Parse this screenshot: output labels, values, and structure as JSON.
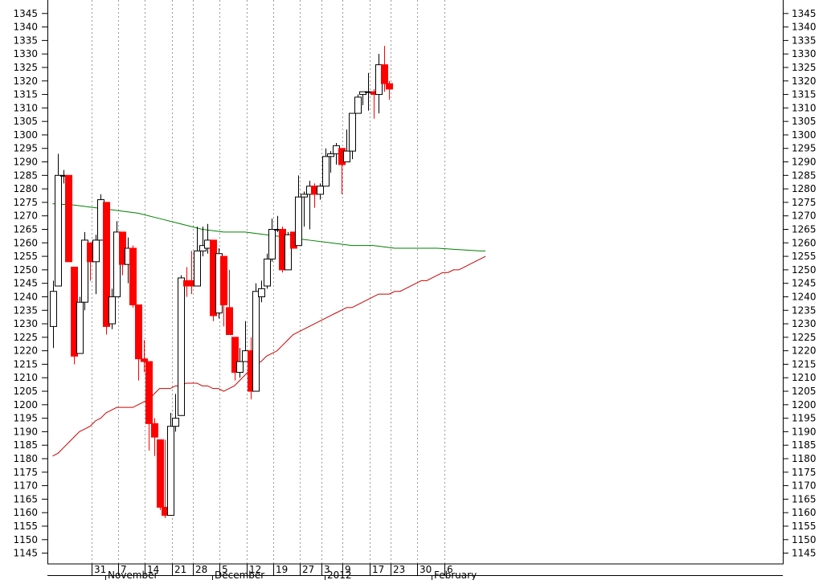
{
  "chart_data": {
    "type": "candlestick",
    "ylim": [
      1141,
      1350
    ],
    "yticks": [
      1145,
      1150,
      1155,
      1160,
      1165,
      1170,
      1175,
      1180,
      1185,
      1190,
      1195,
      1200,
      1205,
      1210,
      1215,
      1220,
      1225,
      1230,
      1235,
      1240,
      1245,
      1250,
      1255,
      1260,
      1265,
      1270,
      1275,
      1280,
      1285,
      1290,
      1295,
      1300,
      1305,
      1310,
      1315,
      1320,
      1325,
      1330,
      1335,
      1340,
      1345
    ],
    "grid": true,
    "colors": {
      "up": "#ffffff",
      "down": "#ff0000",
      "up_outline": "#000000",
      "down_outline": "#ff0000",
      "ma_short": "#cc0000",
      "ma_long": "#008000",
      "grid": "#999999"
    },
    "day_labels": [
      {
        "label": "31",
        "day_index": 2
      },
      {
        "label": "7",
        "day_index": 7
      },
      {
        "label": "14",
        "day_index": 12
      },
      {
        "label": "21",
        "day_index": 17
      },
      {
        "label": "28",
        "day_index": 21
      },
      {
        "label": "5",
        "day_index": 26
      },
      {
        "label": "12",
        "day_index": 31
      },
      {
        "label": "19",
        "day_index": 36
      },
      {
        "label": "27",
        "day_index": 41
      },
      {
        "label": "3",
        "day_index": 45
      },
      {
        "label": "9",
        "day_index": 49
      },
      {
        "label": "17",
        "day_index": 54
      },
      {
        "label": "23",
        "day_index": 58
      },
      {
        "label": "30",
        "day_index": 63
      },
      {
        "label": "6",
        "day_index": 68
      }
    ],
    "month_labels": [
      {
        "label": "November",
        "day_index": 3
      },
      {
        "label": "December",
        "day_index": 23
      },
      {
        "label": "2012",
        "day_index": 44
      },
      {
        "label": "February",
        "day_index": 64
      }
    ],
    "candles": [
      {
        "o": 1229,
        "h": 1246,
        "l": 1221,
        "c": 1242
      },
      {
        "o": 1244,
        "h": 1293,
        "l": 1244,
        "c": 1285
      },
      {
        "o": 1285,
        "h": 1287,
        "l": 1282,
        "c": 1285
      },
      {
        "o": 1285,
        "h": 1285,
        "l": 1253,
        "c": 1253
      },
      {
        "o": 1251,
        "h": 1251,
        "l": 1215,
        "c": 1218
      },
      {
        "o": 1219,
        "h": 1240,
        "l": 1219,
        "c": 1238
      },
      {
        "o": 1238,
        "h": 1264,
        "l": 1235,
        "c": 1261
      },
      {
        "o": 1260,
        "h": 1260,
        "l": 1246,
        "c": 1253
      },
      {
        "o": 1253,
        "h": 1263,
        "l": 1241,
        "c": 1261
      },
      {
        "o": 1261,
        "h": 1278,
        "l": 1261,
        "c": 1276
      },
      {
        "o": 1275,
        "h": 1275,
        "l": 1226,
        "c": 1229
      },
      {
        "o": 1230,
        "h": 1243,
        "l": 1228,
        "c": 1240
      },
      {
        "o": 1240,
        "h": 1268,
        "l": 1240,
        "c": 1264
      },
      {
        "o": 1264,
        "h": 1264,
        "l": 1248,
        "c": 1252
      },
      {
        "o": 1252,
        "h": 1262,
        "l": 1245,
        "c": 1258
      },
      {
        "o": 1258,
        "h": 1259,
        "l": 1236,
        "c": 1237
      },
      {
        "o": 1237,
        "h": 1237,
        "l": 1209,
        "c": 1217
      },
      {
        "o": 1217,
        "h": 1224,
        "l": 1212,
        "c": 1216
      },
      {
        "o": 1216,
        "h": 1216,
        "l": 1183,
        "c": 1193
      },
      {
        "o": 1193,
        "h": 1195,
        "l": 1181,
        "c": 1188
      },
      {
        "o": 1187,
        "h": 1187,
        "l": 1161,
        "c": 1162
      },
      {
        "o": 1162,
        "h": 1187,
        "l": 1158,
        "c": 1159
      },
      {
        "o": 1159,
        "h": 1197,
        "l": 1159,
        "c": 1192
      },
      {
        "o": 1192,
        "h": 1204,
        "l": 1190,
        "c": 1195
      },
      {
        "o": 1196,
        "h": 1248,
        "l": 1196,
        "c": 1247
      },
      {
        "o": 1246,
        "h": 1251,
        "l": 1240,
        "c": 1244
      },
      {
        "o": 1246,
        "h": 1257,
        "l": 1241,
        "c": 1244
      },
      {
        "o": 1244,
        "h": 1266,
        "l": 1244,
        "c": 1257
      },
      {
        "o": 1257,
        "h": 1266,
        "l": 1255,
        "c": 1259
      },
      {
        "o": 1258,
        "h": 1267,
        "l": 1256,
        "c": 1261
      },
      {
        "o": 1261,
        "h": 1261,
        "l": 1231,
        "c": 1233
      },
      {
        "o": 1234,
        "h": 1258,
        "l": 1232,
        "c": 1256
      },
      {
        "o": 1255,
        "h": 1255,
        "l": 1229,
        "c": 1237
      },
      {
        "o": 1236,
        "h": 1250,
        "l": 1226,
        "c": 1226
      },
      {
        "o": 1225,
        "h": 1225,
        "l": 1209,
        "c": 1212
      },
      {
        "o": 1212,
        "h": 1221,
        "l": 1210,
        "c": 1216
      },
      {
        "o": 1216,
        "h": 1231,
        "l": 1216,
        "c": 1220
      },
      {
        "o": 1220,
        "h": 1225,
        "l": 1202,
        "c": 1205
      },
      {
        "o": 1205,
        "h": 1245,
        "l": 1205,
        "c": 1242
      },
      {
        "o": 1240,
        "h": 1246,
        "l": 1238,
        "c": 1243
      },
      {
        "o": 1244,
        "h": 1256,
        "l": 1243,
        "c": 1254
      },
      {
        "o": 1254,
        "h": 1269,
        "l": 1253,
        "c": 1265
      },
      {
        "o": 1265,
        "h": 1270,
        "l": 1264,
        "c": 1265
      },
      {
        "o": 1265,
        "h": 1266,
        "l": 1249,
        "c": 1250
      },
      {
        "o": 1250,
        "h": 1264,
        "l": 1250,
        "c": 1263
      },
      {
        "o": 1264,
        "h": 1264,
        "l": 1258,
        "c": 1258
      },
      {
        "o": 1259,
        "h": 1285,
        "l": 1259,
        "c": 1277
      },
      {
        "o": 1277,
        "h": 1279,
        "l": 1266,
        "c": 1278
      },
      {
        "o": 1278,
        "h": 1283,
        "l": 1265,
        "c": 1281
      },
      {
        "o": 1281,
        "h": 1282,
        "l": 1273,
        "c": 1278
      },
      {
        "o": 1278,
        "h": 1282,
        "l": 1276,
        "c": 1281
      },
      {
        "o": 1281,
        "h": 1295,
        "l": 1281,
        "c": 1292
      },
      {
        "o": 1292,
        "h": 1294,
        "l": 1286,
        "c": 1293
      },
      {
        "o": 1293,
        "h": 1297,
        "l": 1289,
        "c": 1296
      },
      {
        "o": 1295,
        "h": 1295,
        "l": 1278,
        "c": 1289
      },
      {
        "o": 1290,
        "h": 1302,
        "l": 1290,
        "c": 1294
      },
      {
        "o": 1294,
        "h": 1308,
        "l": 1291,
        "c": 1308
      },
      {
        "o": 1308,
        "h": 1315,
        "l": 1308,
        "c": 1314
      },
      {
        "o": 1315,
        "h": 1316,
        "l": 1311,
        "c": 1316
      },
      {
        "o": 1316,
        "h": 1323,
        "l": 1309,
        "c": 1316
      },
      {
        "o": 1316,
        "h": 1317,
        "l": 1306,
        "c": 1315
      },
      {
        "o": 1315,
        "h": 1330,
        "l": 1308,
        "c": 1326
      },
      {
        "o": 1326,
        "h": 1333,
        "l": 1316,
        "c": 1319
      },
      {
        "o": 1319,
        "h": 1320,
        "l": 1313,
        "c": 1317
      }
    ],
    "ma_short": [
      [
        0,
        1181
      ],
      [
        1,
        1182
      ],
      [
        2,
        1184
      ],
      [
        3,
        1186
      ],
      [
        4,
        1188
      ],
      [
        5,
        1190
      ],
      [
        6,
        1191
      ],
      [
        7,
        1192
      ],
      [
        8,
        1194
      ],
      [
        9,
        1195
      ],
      [
        10,
        1197
      ],
      [
        11,
        1198
      ],
      [
        12,
        1199
      ],
      [
        13,
        1199
      ],
      [
        14,
        1199
      ],
      [
        15,
        1199
      ],
      [
        16,
        1200
      ],
      [
        17,
        1201
      ],
      [
        18,
        1202
      ],
      [
        19,
        1204
      ],
      [
        20,
        1206
      ],
      [
        21,
        1206
      ],
      [
        22,
        1206
      ],
      [
        23,
        1207
      ],
      [
        24,
        1207
      ],
      [
        25,
        1208
      ],
      [
        26,
        1208
      ],
      [
        27,
        1208
      ],
      [
        28,
        1207
      ],
      [
        29,
        1207
      ],
      [
        30,
        1206
      ],
      [
        31,
        1206
      ],
      [
        32,
        1205
      ],
      [
        33,
        1206
      ],
      [
        34,
        1207
      ],
      [
        35,
        1209
      ],
      [
        36,
        1211
      ],
      [
        37,
        1213
      ],
      [
        38,
        1215
      ],
      [
        39,
        1216
      ],
      [
        40,
        1218
      ],
      [
        41,
        1219
      ],
      [
        42,
        1220
      ],
      [
        43,
        1222
      ],
      [
        44,
        1224
      ],
      [
        45,
        1226
      ],
      [
        46,
        1227
      ],
      [
        47,
        1228
      ],
      [
        48,
        1229
      ],
      [
        49,
        1230
      ],
      [
        50,
        1231
      ],
      [
        51,
        1232
      ],
      [
        52,
        1233
      ],
      [
        53,
        1234
      ],
      [
        54,
        1235
      ],
      [
        55,
        1236
      ],
      [
        56,
        1236
      ],
      [
        57,
        1237
      ],
      [
        58,
        1238
      ],
      [
        59,
        1239
      ],
      [
        60,
        1240
      ],
      [
        61,
        1241
      ],
      [
        62,
        1241
      ],
      [
        63,
        1241
      ],
      [
        64,
        1242
      ],
      [
        65,
        1242
      ],
      [
        66,
        1243
      ],
      [
        67,
        1244
      ],
      [
        68,
        1245
      ],
      [
        69,
        1246
      ],
      [
        70,
        1246
      ],
      [
        71,
        1247
      ],
      [
        72,
        1248
      ],
      [
        73,
        1249
      ],
      [
        74,
        1249
      ],
      [
        75,
        1250
      ],
      [
        76,
        1250
      ],
      [
        77,
        1251
      ],
      [
        78,
        1252
      ],
      [
        79,
        1253
      ],
      [
        80,
        1254
      ],
      [
        81,
        1255
      ]
    ],
    "ma_long": [
      [
        0,
        1274.5
      ],
      [
        4,
        1274
      ],
      [
        8,
        1273
      ],
      [
        12,
        1272
      ],
      [
        16,
        1271
      ],
      [
        20,
        1269
      ],
      [
        24,
        1267
      ],
      [
        28,
        1265
      ],
      [
        32,
        1264
      ],
      [
        36,
        1264
      ],
      [
        40,
        1263
      ],
      [
        44,
        1262
      ],
      [
        48,
        1261
      ],
      [
        52,
        1260
      ],
      [
        56,
        1259
      ],
      [
        60,
        1259
      ],
      [
        64,
        1258
      ],
      [
        68,
        1258
      ],
      [
        72,
        1258
      ],
      [
        76,
        1257.5
      ],
      [
        80,
        1257
      ],
      [
        81,
        1257
      ]
    ]
  }
}
